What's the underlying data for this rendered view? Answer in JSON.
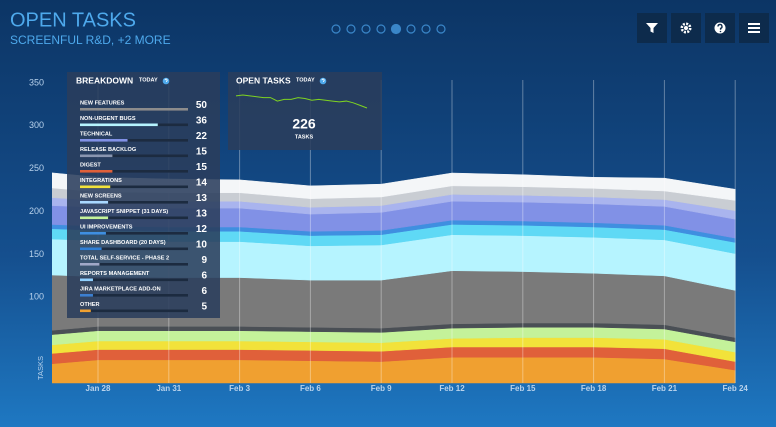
{
  "header": {
    "title": "OPEN TASKS",
    "subtitle": "SCREENFUL R&D, +2 MORE"
  },
  "breakdown": {
    "title": "BREAKDOWN",
    "period": "TODAY",
    "items": [
      {
        "name": "NEW FEATURES",
        "value": 50,
        "color": "#8c8c8c"
      },
      {
        "name": "NON-URGENT BUGS",
        "value": 36,
        "color": "#b6f4ff"
      },
      {
        "name": "TECHNICAL",
        "value": 22,
        "color": "#8191e6"
      },
      {
        "name": "RELEASE BACKLOG",
        "value": 15,
        "color": "#8a96b0"
      },
      {
        "name": "DIGEST",
        "value": 15,
        "color": "#e0603a"
      },
      {
        "name": "INTEGRATIONS",
        "value": 14,
        "color": "#f2e23a"
      },
      {
        "name": "NEW SCREENS",
        "value": 13,
        "color": "#a9d8ff"
      },
      {
        "name": "JAVASCRIPT SNIPPET (31 DAYS)",
        "value": 13,
        "color": "#c4f29a"
      },
      {
        "name": "UI IMPROVEMENTS",
        "value": 12,
        "color": "#3f8fe0"
      },
      {
        "name": "SHARE DASHBOARD (20 DAYS)",
        "value": 10,
        "color": "#2f7fd6"
      },
      {
        "name": "TOTAL SELF-SERVICE - PHASE 2",
        "value": 9,
        "color": "#a0a8c8"
      },
      {
        "name": "REPORTS MANAGEMENT",
        "value": 6,
        "color": "#8fd0ff"
      },
      {
        "name": "JIRA MARKETPLACE ADD-ON",
        "value": 6,
        "color": "#3c7fd0"
      },
      {
        "name": "OTHER",
        "value": 5,
        "color": "#f0a030"
      }
    ]
  },
  "open_tasks": {
    "title": "OPEN TASKS",
    "period": "TODAY",
    "total": 226,
    "unit": "TASKS",
    "color": "#7ed321",
    "sparkline": [
      240,
      241,
      240,
      239,
      238,
      238,
      234,
      236,
      236,
      238,
      237,
      235,
      236,
      235,
      234,
      233,
      234,
      232,
      229,
      226
    ]
  },
  "chart_data": {
    "type": "area",
    "stacked": true,
    "y_label": "TASKS",
    "categories": [
      null,
      "Jan 28",
      "Jan 31",
      "Feb 3",
      "Feb 6",
      "Feb 9",
      "Feb 12",
      "Feb 15",
      "Feb 18",
      "Feb 21",
      "Feb 24"
    ],
    "ylim": [
      0,
      350
    ],
    "yticks": [
      100,
      150,
      200,
      250,
      300,
      350
    ],
    "grid": "x",
    "series": [
      {
        "color": "#f0a030",
        "values": [
          20,
          27,
          27,
          27,
          26,
          25,
          30,
          30,
          30,
          28,
          15
        ]
      },
      {
        "color": "#e0603a",
        "values": [
          12,
          12,
          12,
          12,
          12,
          12,
          12,
          12,
          12,
          12,
          10
        ]
      },
      {
        "color": "#f2e23a",
        "values": [
          10,
          10,
          10,
          10,
          10,
          10,
          10,
          11,
          11,
          11,
          11
        ]
      },
      {
        "color": "#c4f29a",
        "values": [
          12,
          12,
          12,
          12,
          12,
          12,
          12,
          12,
          12,
          12,
          12
        ]
      },
      {
        "color": "#4a4f55",
        "values": [
          5,
          5,
          5,
          5,
          5,
          5,
          5,
          5,
          5,
          5,
          5
        ]
      },
      {
        "color": "#7a7a7a",
        "values": [
          68,
          58,
          57,
          57,
          55,
          56,
          62,
          60,
          58,
          57,
          55
        ]
      },
      {
        "color": "#b6f4ff",
        "values": [
          42,
          42,
          42,
          42,
          40,
          41,
          42,
          42,
          42,
          42,
          43
        ]
      },
      {
        "color": "#5fd9f5",
        "values": [
          12,
          12,
          12,
          12,
          12,
          12,
          12,
          12,
          12,
          12,
          13
        ]
      },
      {
        "color": "#3f8fe0",
        "values": [
          5,
          5,
          5,
          5,
          5,
          5,
          5,
          5,
          5,
          5,
          5
        ]
      },
      {
        "color": "#8191e6",
        "values": [
          22,
          22,
          22,
          22,
          20,
          21,
          22,
          22,
          22,
          22,
          22
        ]
      },
      {
        "color": "#a9b4ee",
        "values": [
          10,
          8,
          8,
          8,
          8,
          8,
          8,
          8,
          8,
          8,
          10
        ]
      },
      {
        "color": "#c9cdd3",
        "values": [
          12,
          10,
          10,
          10,
          10,
          10,
          10,
          10,
          10,
          10,
          12
        ]
      },
      {
        "color": "#f4f6f8",
        "values": [
          18,
          17,
          16,
          15,
          15,
          15,
          15,
          14,
          13,
          15,
          13
        ]
      }
    ]
  }
}
